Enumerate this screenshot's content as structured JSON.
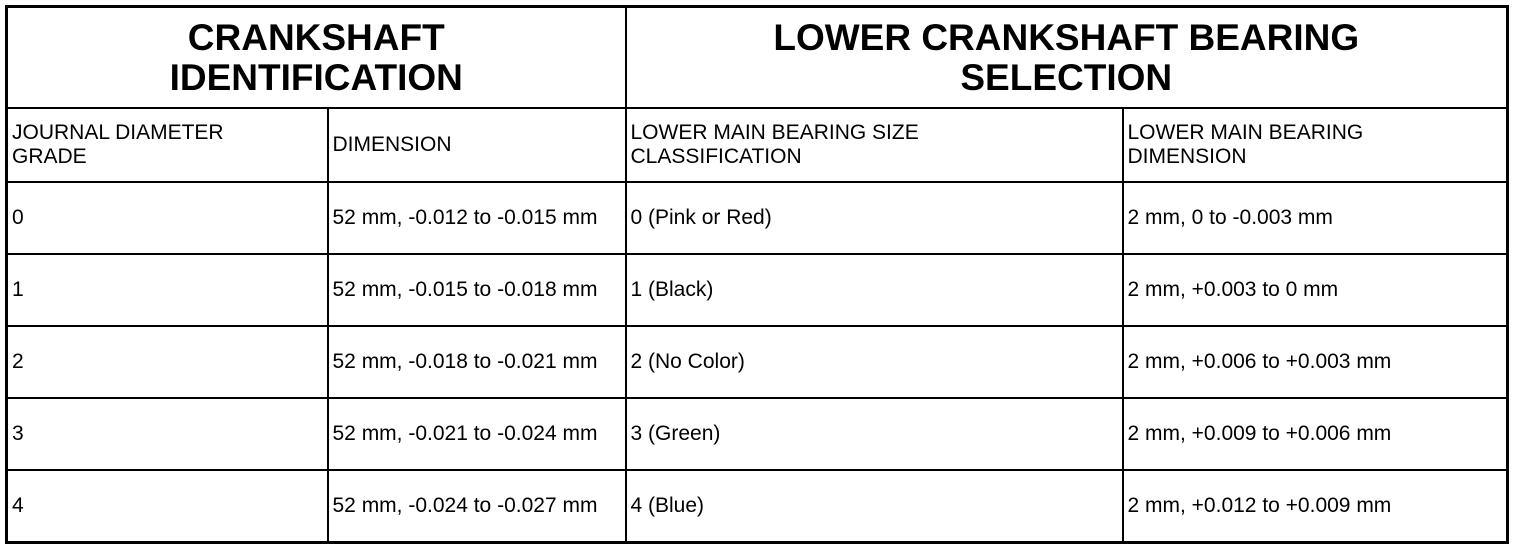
{
  "header": {
    "left_title": "CRANKSHAFT IDENTIFICATION",
    "right_title": "LOWER CRANKSHAFT BEARING SELECTION"
  },
  "columns": [
    "JOURNAL DIAMETER GRADE",
    "DIMENSION",
    "LOWER MAIN BEARING SIZE CLASSIFICATION",
    "LOWER MAIN BEARING DIMENSION"
  ],
  "rows": [
    [
      "0",
      "52 mm, -0.012 to -0.015 mm",
      "0 (Pink or Red)",
      "2 mm, 0 to -0.003 mm"
    ],
    [
      "1",
      "52 mm, -0.015 to -0.018 mm",
      "1 (Black)",
      "2 mm, +0.003 to 0 mm"
    ],
    [
      "2",
      "52 mm, -0.018 to -0.021 mm",
      "2 (No Color)",
      "2 mm, +0.006 to +0.003 mm"
    ],
    [
      "3",
      "52 mm, -0.021 to -0.024 mm",
      "3 (Green)",
      "2 mm, +0.009 to +0.006 mm"
    ],
    [
      "4",
      "52 mm, -0.024 to -0.027 mm",
      "4 (Blue)",
      "2 mm, +0.012 to +0.009 mm"
    ]
  ]
}
